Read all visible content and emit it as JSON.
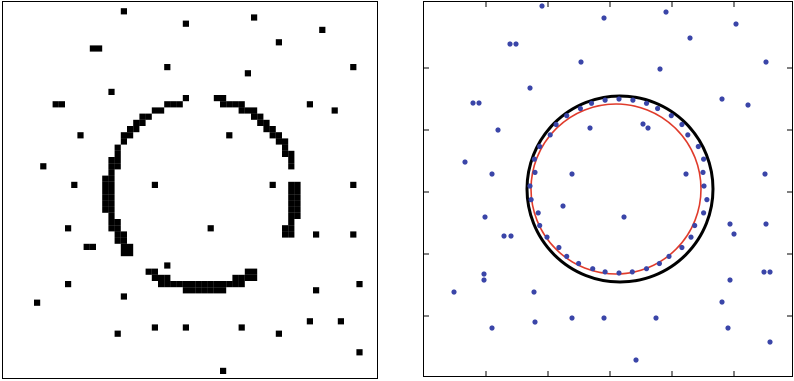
{
  "figure": {
    "left_panel": {
      "kind": "binary-pixel-grid",
      "pixel_color": "#000000",
      "background_color": "#ffffff"
    },
    "right_panel": {
      "kind": "scatter-with-fitted-circles",
      "point_color": "#3a45a8",
      "true_circle_color": "#000000",
      "fitted_circle_color": "#e03b2b",
      "background_color": "#ffffff",
      "tick_count_x": 6,
      "tick_count_y": 5
    }
  }
}
